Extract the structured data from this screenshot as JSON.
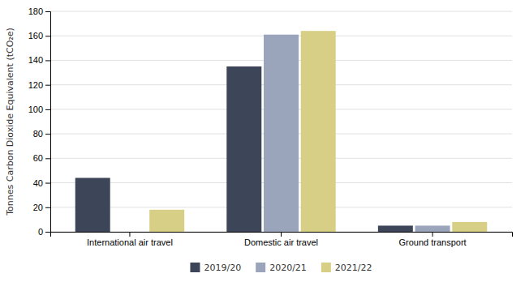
{
  "chart_data": {
    "type": "bar",
    "ylabel": "Tonnes Carbon Dioxide Equivalent (tCO₂e)",
    "categories": [
      "International air travel",
      "Domestic air travel",
      "Ground transport"
    ],
    "series": [
      {
        "name": "2019/20",
        "color": "#3d4558",
        "values": [
          44,
          135,
          5
        ]
      },
      {
        "name": "2020/21",
        "color": "#9aa5bb",
        "values": [
          0,
          161,
          5
        ]
      },
      {
        "name": "2021/22",
        "color": "#d8cf87",
        "values": [
          18,
          164,
          8
        ]
      }
    ],
    "ylim": [
      0,
      180
    ],
    "yticks": [
      0,
      20,
      40,
      60,
      80,
      100,
      120,
      140,
      160,
      180
    ],
    "grid": true,
    "legend": "bottom"
  }
}
